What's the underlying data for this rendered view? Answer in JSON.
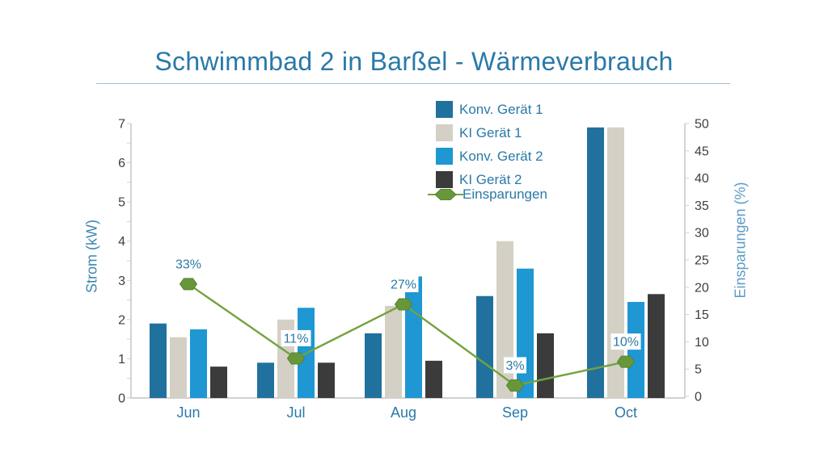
{
  "title": "Schwimmbad 2 in Barßel - Wärmeverbrauch",
  "palette": {
    "title_text": "#2A79A8",
    "tick_text": "#3F3F3F",
    "axis_line": "#C2C2C2",
    "left_axis_title": "#3E86B2",
    "right_axis_title": "#5C9CC5",
    "category_text": "#2A79A8",
    "marker_label_text": "#2979A8"
  },
  "chart_data": {
    "type": "bar+line combo",
    "categories": [
      "Jun",
      "Jul",
      "Aug",
      "Sep",
      "Oct"
    ],
    "series": [
      {
        "name": "Konv. Gerät 1",
        "color": "#21719E",
        "values": [
          1.9,
          0.9,
          1.65,
          2.6,
          6.9
        ]
      },
      {
        "name": "KI Gerät 1",
        "color": "#D4D0C5",
        "values": [
          1.55,
          2.0,
          2.35,
          4.0,
          6.9
        ]
      },
      {
        "name": "Konv. Gerät 2",
        "color": "#1E97D3",
        "values": [
          1.75,
          2.3,
          3.1,
          3.3,
          2.45
        ]
      },
      {
        "name": "KI Gerät 2",
        "color": "#3B3B3B",
        "values": [
          0.8,
          0.9,
          0.95,
          1.65,
          2.65
        ]
      }
    ],
    "line_series": {
      "name": "Einsparungen",
      "line_color": "#74A23E",
      "marker_color": "#68973B",
      "marker_edge_color": "#57832F",
      "values": [
        33,
        11,
        27,
        3,
        10
      ],
      "labels": [
        "33%",
        "11%",
        "27%",
        "3%",
        "10%"
      ]
    },
    "ylabel_left": "Strom (kW)",
    "ylabel_right": "Einsparungen (%)",
    "y_left": {
      "min": 0,
      "max": 7,
      "step": 1,
      "minor_step": 0.5
    },
    "y_right": {
      "min": 0,
      "max": 50,
      "step": 5
    },
    "y_right_plot_max": 80,
    "grid": "off",
    "legend_position": "top-center"
  }
}
